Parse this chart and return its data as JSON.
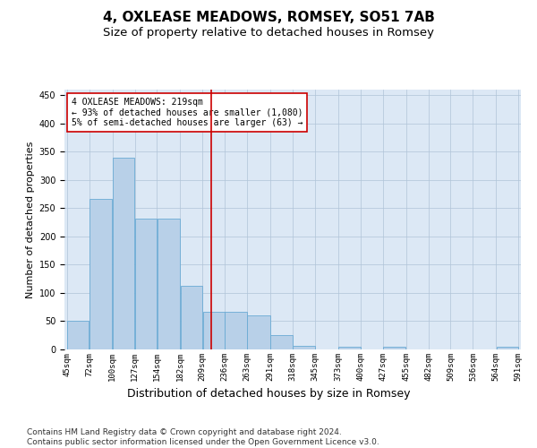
{
  "title": "4, OXLEASE MEADOWS, ROMSEY, SO51 7AB",
  "subtitle": "Size of property relative to detached houses in Romsey",
  "xlabel": "Distribution of detached houses by size in Romsey",
  "ylabel": "Number of detached properties",
  "bar_color": "#b8d0e8",
  "bar_edge_color": "#6aaad4",
  "background_color": "#ffffff",
  "plot_bg_color": "#dce8f5",
  "grid_color": "#b0c4d8",
  "vline_x": 219,
  "vline_color": "#cc0000",
  "annotation_text": "4 OXLEASE MEADOWS: 219sqm\n← 93% of detached houses are smaller (1,080)\n5% of semi-detached houses are larger (63) →",
  "annotation_box_color": "#cc0000",
  "bins": [
    45,
    72,
    100,
    127,
    154,
    182,
    209,
    236,
    263,
    291,
    318,
    345,
    373,
    400,
    427,
    455,
    482,
    509,
    536,
    564,
    591
  ],
  "bar_heights": [
    50,
    267,
    340,
    232,
    232,
    113,
    67,
    67,
    61,
    25,
    7,
    0,
    5,
    0,
    5,
    0,
    0,
    0,
    0,
    5
  ],
  "ylim": [
    0,
    460
  ],
  "yticks": [
    0,
    50,
    100,
    150,
    200,
    250,
    300,
    350,
    400,
    450
  ],
  "footer_text": "Contains HM Land Registry data © Crown copyright and database right 2024.\nContains public sector information licensed under the Open Government Licence v3.0.",
  "title_fontsize": 11,
  "subtitle_fontsize": 9.5,
  "xlabel_fontsize": 9,
  "ylabel_fontsize": 8,
  "tick_fontsize": 7,
  "footer_fontsize": 6.5
}
